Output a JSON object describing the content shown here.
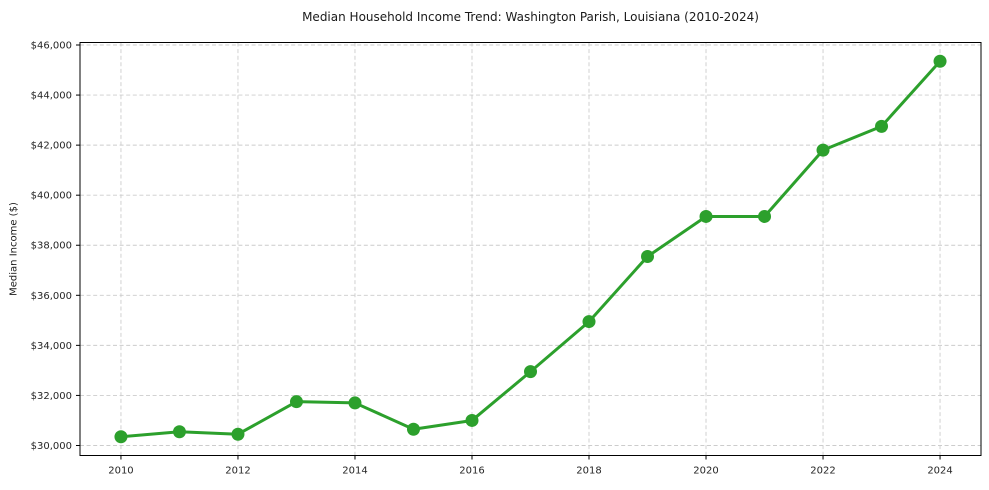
{
  "chart_data": {
    "type": "line",
    "title": "Median Household Income Trend: Washington Parish, Louisiana (2010-2024)",
    "ylabel": "Median Income ($)",
    "xlabel": "",
    "x": [
      2010,
      2011,
      2012,
      2013,
      2014,
      2015,
      2016,
      2017,
      2018,
      2019,
      2020,
      2021,
      2022,
      2023,
      2024
    ],
    "series": [
      {
        "name": "Median Household Income",
        "values": [
          30350,
          30550,
          30450,
          31750,
          31700,
          30650,
          31000,
          32950,
          34950,
          37550,
          39150,
          39150,
          41800,
          42750,
          45350
        ]
      }
    ],
    "x_ticks": [
      2010,
      2012,
      2014,
      2016,
      2018,
      2020,
      2022,
      2024
    ],
    "x_tick_labels": [
      "2010",
      "2012",
      "2014",
      "2016",
      "2018",
      "2020",
      "2022",
      "2024"
    ],
    "y_ticks": [
      30000,
      32000,
      34000,
      36000,
      38000,
      40000,
      42000,
      44000,
      46000
    ],
    "y_tick_labels": [
      "$30,000",
      "$32,000",
      "$34,000",
      "$36,000",
      "$38,000",
      "$40,000",
      "$42,000",
      "$44,000",
      "$46,000"
    ],
    "xlim": [
      2009.3,
      2024.7
    ],
    "ylim": [
      29600,
      46100
    ],
    "grid": true,
    "legend": "none",
    "line_color": "#2ca02c",
    "marker": "circle",
    "marker_radius": 6.5,
    "line_width": 3,
    "grid_color": "#cccccc",
    "axis_color": "#000000",
    "text_color": "#262626",
    "background": "#ffffff"
  }
}
